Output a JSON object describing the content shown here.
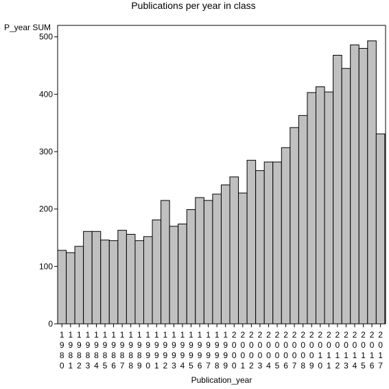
{
  "chart_data": {
    "type": "bar",
    "title": "Publications per year in class",
    "xlabel": "Publication_year",
    "ylabel": "P_year SUM",
    "ylim": [
      0,
      520
    ],
    "yticks": [
      0,
      100,
      200,
      300,
      400,
      500
    ],
    "grid": false,
    "categories": [
      "1980",
      "1981",
      "1982",
      "1983",
      "1984",
      "1985",
      "1986",
      "1987",
      "1988",
      "1989",
      "1990",
      "1991",
      "1992",
      "1993",
      "1994",
      "1995",
      "1996",
      "1997",
      "1998",
      "1999",
      "2000",
      "2001",
      "2002",
      "2003",
      "2004",
      "2005",
      "2006",
      "2007",
      "2008",
      "2009",
      "2010",
      "2011",
      "2012",
      "2013",
      "2014",
      "2015",
      "2016",
      "2017"
    ],
    "values": [
      128,
      124,
      135,
      161,
      161,
      146,
      145,
      163,
      156,
      145,
      152,
      181,
      215,
      170,
      174,
      199,
      220,
      215,
      226,
      242,
      256,
      228,
      285,
      267,
      282,
      282,
      307,
      342,
      363,
      403,
      413,
      404,
      468,
      445,
      486,
      480,
      493,
      331
    ],
    "colors": {
      "bar_fill": "#c0c0c0",
      "bar_stroke": "#000000"
    }
  }
}
